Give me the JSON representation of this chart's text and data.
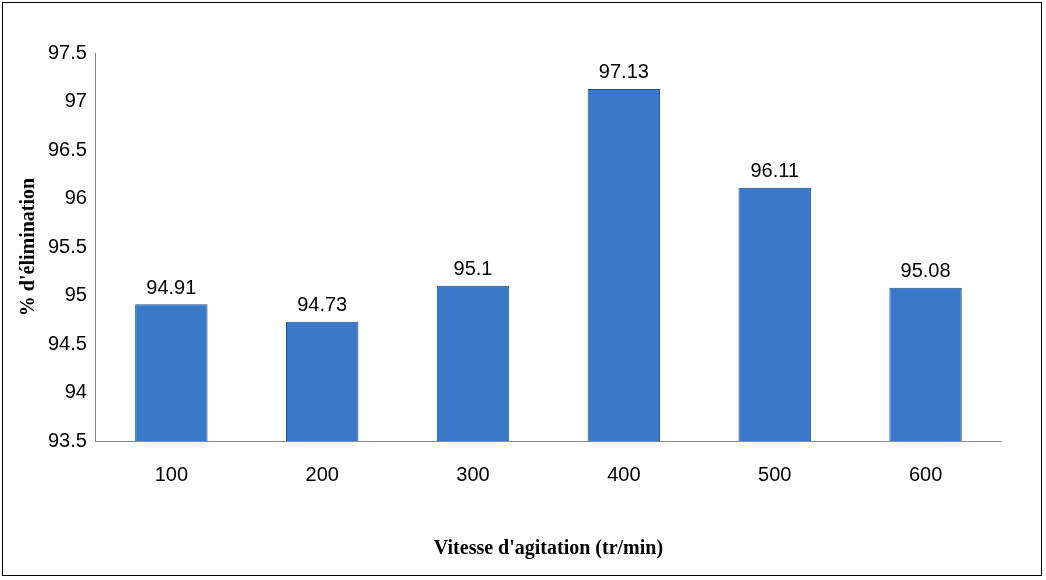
{
  "chart_data": {
    "type": "bar",
    "xlabel": "Vitesse d'agitation (tr/min)",
    "ylabel": "% d'élimination",
    "categories": [
      "100",
      "200",
      "300",
      "400",
      "500",
      "600"
    ],
    "values": [
      94.91,
      94.73,
      95.1,
      97.13,
      96.11,
      95.08
    ],
    "color": "#3a78c9",
    "ylim": [
      93.5,
      97.5
    ],
    "yticks": [
      93.5,
      94,
      94.5,
      95,
      95.5,
      96,
      96.5,
      97,
      97.5
    ],
    "grid": false,
    "legend": false,
    "data_labels": true
  }
}
